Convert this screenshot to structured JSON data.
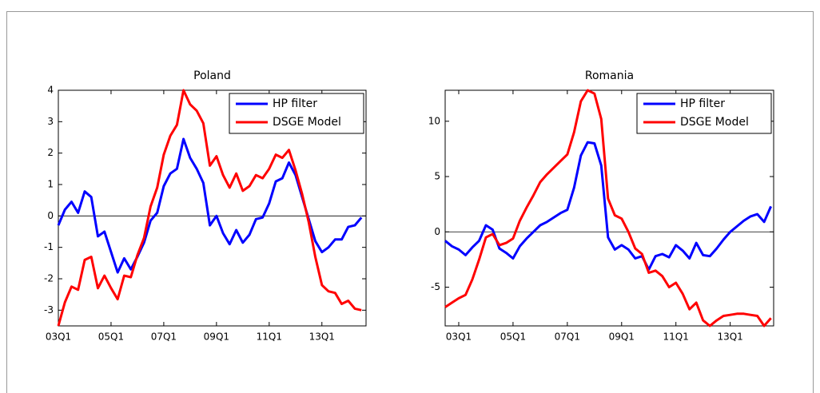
{
  "chart_data": [
    {
      "type": "line",
      "title": "Poland",
      "categories": [
        "03Q1",
        null,
        null,
        null,
        null,
        null,
        null,
        null,
        "05Q1",
        null,
        null,
        null,
        null,
        null,
        null,
        null,
        "07Q1",
        null,
        null,
        null,
        null,
        null,
        null,
        null,
        "09Q1",
        null,
        null,
        null,
        null,
        null,
        null,
        null,
        "11Q1",
        null,
        null,
        null,
        null,
        null,
        null,
        null,
        "13Q1",
        null,
        null,
        null,
        null,
        null,
        null
      ],
      "series": [
        {
          "name": "HP filter",
          "color": "#0000ff",
          "values": [
            -0.3,
            0.2,
            0.45,
            0.1,
            0.78,
            0.6,
            -0.65,
            -0.5,
            -1.15,
            -1.8,
            -1.35,
            -1.7,
            -1.3,
            -0.85,
            -0.15,
            0.1,
            0.95,
            1.35,
            1.5,
            2.45,
            1.85,
            1.5,
            1.05,
            -0.3,
            0.0,
            -0.55,
            -0.9,
            -0.45,
            -0.85,
            -0.6,
            -0.1,
            -0.05,
            0.4,
            1.1,
            1.2,
            1.7,
            1.3,
            0.6,
            -0.1,
            -0.8,
            -1.15,
            -1.0,
            -0.75,
            -0.75,
            -0.35,
            -0.3,
            -0.05
          ]
        },
        {
          "name": "DSGE Model",
          "color": "#ff0000",
          "values": [
            -3.5,
            -2.75,
            -2.25,
            -2.35,
            -1.4,
            -1.3,
            -2.3,
            -1.9,
            -2.3,
            -2.65,
            -1.9,
            -1.95,
            -1.25,
            -0.7,
            0.3,
            0.9,
            1.95,
            2.55,
            2.9,
            4.0,
            3.55,
            3.35,
            2.95,
            1.6,
            1.9,
            1.3,
            0.9,
            1.35,
            0.8,
            0.95,
            1.3,
            1.2,
            1.5,
            1.95,
            1.85,
            2.1,
            1.45,
            0.7,
            -0.2,
            -1.3,
            -2.2,
            -2.4,
            -2.45,
            -2.8,
            -2.7,
            -2.95,
            -3.0
          ]
        }
      ],
      "ylim": [
        -3.5,
        4
      ],
      "yticks": [
        -3,
        -2,
        -1,
        0,
        1,
        2,
        3,
        4
      ],
      "legend": "northeast"
    },
    {
      "type": "line",
      "title": "Romania",
      "categories": [
        null,
        null,
        "03Q1",
        null,
        null,
        null,
        null,
        null,
        null,
        null,
        "05Q1",
        null,
        null,
        null,
        null,
        null,
        null,
        null,
        "07Q1",
        null,
        null,
        null,
        null,
        null,
        null,
        null,
        "09Q1",
        null,
        null,
        null,
        null,
        null,
        null,
        null,
        "11Q1",
        null,
        null,
        null,
        null,
        null,
        null,
        null,
        "13Q1",
        null,
        null,
        null,
        null,
        null,
        null
      ],
      "series": [
        {
          "name": "HP filter",
          "color": "#0000ff",
          "values": [
            -0.8,
            -1.3,
            -1.6,
            -2.1,
            -1.4,
            -0.8,
            0.6,
            0.2,
            -1.5,
            -1.9,
            -2.4,
            -1.3,
            -0.6,
            0.0,
            0.6,
            0.9,
            1.3,
            1.7,
            2.0,
            4.0,
            6.9,
            8.1,
            8.0,
            6.0,
            -0.5,
            -1.6,
            -1.2,
            -1.6,
            -2.4,
            -2.2,
            -3.4,
            -2.2,
            -2.0,
            -2.3,
            -1.2,
            -1.7,
            -2.4,
            -1.0,
            -2.1,
            -2.2,
            -1.5,
            -0.7,
            0.0,
            0.5,
            1.0,
            1.4,
            1.6,
            0.9,
            2.3
          ]
        },
        {
          "name": "DSGE Model",
          "color": "#ff0000",
          "values": [
            -6.8,
            -6.4,
            -6.0,
            -5.7,
            -4.3,
            -2.5,
            -0.5,
            -0.2,
            -1.2,
            -1.0,
            -0.6,
            1.0,
            2.2,
            3.3,
            4.5,
            5.2,
            5.8,
            6.4,
            7.0,
            9.0,
            11.8,
            12.8,
            12.5,
            10.2,
            3.0,
            1.5,
            1.2,
            0.0,
            -1.5,
            -2.0,
            -3.7,
            -3.5,
            -4.0,
            -5.0,
            -4.6,
            -5.6,
            -7.0,
            -6.4,
            -8.0,
            -8.5,
            -8.0,
            -7.6,
            -7.5,
            -7.4,
            -7.4,
            -7.5,
            -7.6,
            -8.5,
            -7.8
          ]
        }
      ],
      "ylim": [
        -8.5,
        12.8
      ],
      "yticks": [
        -5,
        0,
        5,
        10
      ],
      "legend": "northeast"
    }
  ]
}
